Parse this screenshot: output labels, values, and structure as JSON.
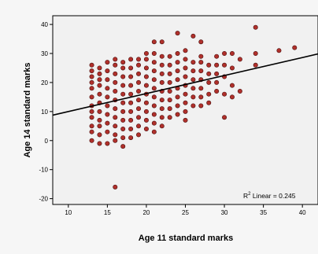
{
  "chart_data": {
    "type": "scatter",
    "xlabel": "Age 11 standard marks",
    "ylabel": "Age 14 standard marks",
    "xlim": [
      8,
      42
    ],
    "ylim": [
      -22,
      43
    ],
    "xticks": [
      "10",
      "15",
      "20",
      "25",
      "30",
      "35",
      "40"
    ],
    "yticks": [
      "-20",
      "-10",
      "0",
      "10",
      "20",
      "30",
      "40"
    ],
    "grid": false,
    "annotation": {
      "prefix": "R",
      "superscript": "2",
      "text": " Linear = 0.245"
    },
    "trendline": {
      "slope": 0.62,
      "intercept": 3.8
    },
    "marker_color": "#b0302b",
    "marker_edge": "#4a0e0c",
    "series": [
      {
        "values": [
          [
            13,
            0
          ],
          [
            13,
            3
          ],
          [
            13,
            5
          ],
          [
            13,
            8
          ],
          [
            13,
            10
          ],
          [
            13,
            12
          ],
          [
            13,
            15
          ],
          [
            13,
            18
          ],
          [
            13,
            20
          ],
          [
            13,
            22
          ],
          [
            13,
            24
          ],
          [
            13,
            26
          ],
          [
            14,
            -1
          ],
          [
            14,
            2
          ],
          [
            14,
            5
          ],
          [
            14,
            7
          ],
          [
            14,
            10
          ],
          [
            14,
            13
          ],
          [
            14,
            16
          ],
          [
            14,
            19
          ],
          [
            14,
            21
          ],
          [
            14,
            23
          ],
          [
            14,
            25
          ],
          [
            15,
            -1
          ],
          [
            15,
            3
          ],
          [
            15,
            6
          ],
          [
            15,
            9
          ],
          [
            15,
            12
          ],
          [
            15,
            15
          ],
          [
            15,
            18
          ],
          [
            15,
            21
          ],
          [
            15,
            24
          ],
          [
            15,
            27
          ],
          [
            16,
            0
          ],
          [
            16,
            2
          ],
          [
            16,
            5
          ],
          [
            16,
            8
          ],
          [
            16,
            11
          ],
          [
            16,
            14
          ],
          [
            16,
            17
          ],
          [
            16,
            20
          ],
          [
            16,
            23
          ],
          [
            16,
            26
          ],
          [
            16,
            28
          ],
          [
            16,
            -16
          ],
          [
            17,
            -2
          ],
          [
            17,
            1
          ],
          [
            17,
            4
          ],
          [
            17,
            7
          ],
          [
            17,
            10
          ],
          [
            17,
            13
          ],
          [
            17,
            16
          ],
          [
            17,
            19
          ],
          [
            17,
            22
          ],
          [
            17,
            25
          ],
          [
            17,
            27
          ],
          [
            18,
            1
          ],
          [
            18,
            4
          ],
          [
            18,
            7
          ],
          [
            18,
            10
          ],
          [
            18,
            13
          ],
          [
            18,
            16
          ],
          [
            18,
            19
          ],
          [
            18,
            22
          ],
          [
            18,
            25
          ],
          [
            18,
            28
          ],
          [
            19,
            2
          ],
          [
            19,
            5
          ],
          [
            19,
            8
          ],
          [
            19,
            11
          ],
          [
            19,
            14
          ],
          [
            19,
            17
          ],
          [
            19,
            20
          ],
          [
            19,
            23
          ],
          [
            19,
            26
          ],
          [
            19,
            28
          ],
          [
            20,
            4
          ],
          [
            20,
            7
          ],
          [
            20,
            10
          ],
          [
            20,
            13
          ],
          [
            20,
            16
          ],
          [
            20,
            19
          ],
          [
            20,
            22
          ],
          [
            20,
            25
          ],
          [
            20,
            28
          ],
          [
            20,
            30
          ],
          [
            21,
            3
          ],
          [
            21,
            6
          ],
          [
            21,
            9
          ],
          [
            21,
            12
          ],
          [
            21,
            15
          ],
          [
            21,
            18
          ],
          [
            21,
            21
          ],
          [
            21,
            24
          ],
          [
            21,
            27
          ],
          [
            21,
            30
          ],
          [
            21,
            34
          ],
          [
            22,
            5
          ],
          [
            22,
            8
          ],
          [
            22,
            11
          ],
          [
            22,
            14
          ],
          [
            22,
            17
          ],
          [
            22,
            20
          ],
          [
            22,
            23
          ],
          [
            22,
            26
          ],
          [
            22,
            29
          ],
          [
            22,
            34
          ],
          [
            23,
            8
          ],
          [
            23,
            11
          ],
          [
            23,
            14
          ],
          [
            23,
            17
          ],
          [
            23,
            20
          ],
          [
            23,
            23
          ],
          [
            23,
            26
          ],
          [
            23,
            29
          ],
          [
            24,
            9
          ],
          [
            24,
            12
          ],
          [
            24,
            15
          ],
          [
            24,
            18
          ],
          [
            24,
            21
          ],
          [
            24,
            24
          ],
          [
            24,
            27
          ],
          [
            24,
            30
          ],
          [
            24,
            37
          ],
          [
            25,
            7
          ],
          [
            25,
            10
          ],
          [
            25,
            13
          ],
          [
            25,
            16
          ],
          [
            25,
            19
          ],
          [
            25,
            22
          ],
          [
            25,
            25
          ],
          [
            25,
            28
          ],
          [
            25,
            31
          ],
          [
            26,
            12
          ],
          [
            26,
            15
          ],
          [
            26,
            18
          ],
          [
            26,
            21
          ],
          [
            26,
            24
          ],
          [
            26,
            27
          ],
          [
            26,
            36
          ],
          [
            27,
            12
          ],
          [
            27,
            15
          ],
          [
            27,
            18
          ],
          [
            27,
            21
          ],
          [
            27,
            24
          ],
          [
            27,
            27
          ],
          [
            27,
            29
          ],
          [
            27,
            34
          ],
          [
            28,
            13
          ],
          [
            28,
            16
          ],
          [
            28,
            20
          ],
          [
            28,
            23
          ],
          [
            28,
            26
          ],
          [
            29,
            17
          ],
          [
            29,
            20
          ],
          [
            29,
            23
          ],
          [
            29,
            26
          ],
          [
            29,
            29
          ],
          [
            30,
            8
          ],
          [
            30,
            16
          ],
          [
            30,
            22
          ],
          [
            30,
            26
          ],
          [
            30,
            30
          ],
          [
            31,
            15
          ],
          [
            31,
            19
          ],
          [
            31,
            25
          ],
          [
            31,
            30
          ],
          [
            32,
            17
          ],
          [
            32,
            28
          ],
          [
            34,
            26
          ],
          [
            34,
            30
          ],
          [
            34,
            39
          ],
          [
            37,
            31
          ],
          [
            39,
            32
          ]
        ]
      }
    ]
  }
}
